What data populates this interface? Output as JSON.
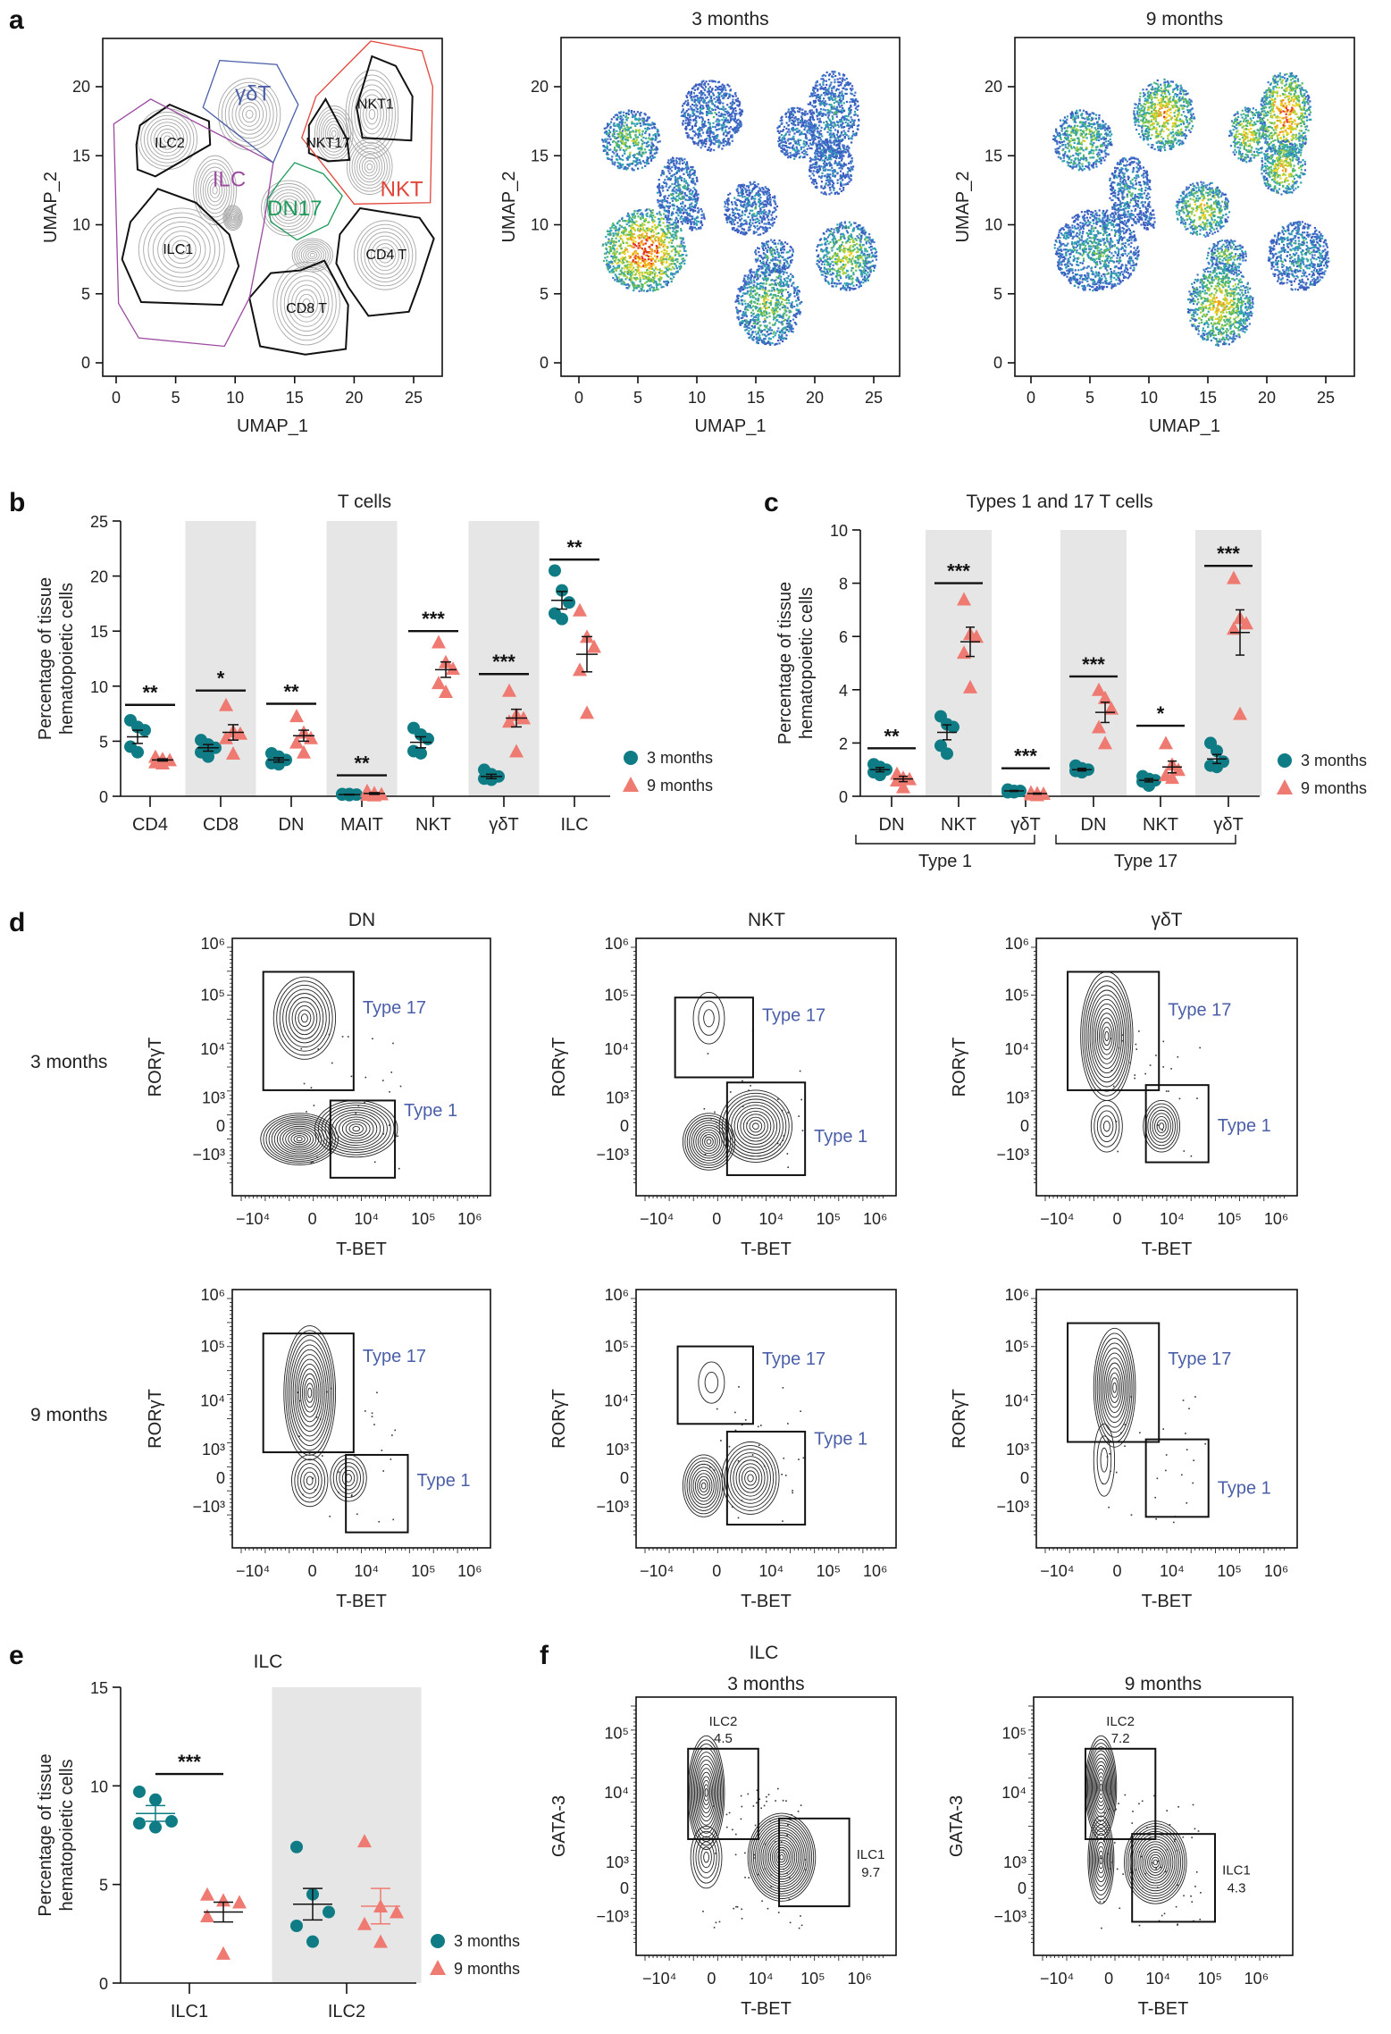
{
  "figure": {
    "panel_labels": [
      "a",
      "b",
      "c",
      "d",
      "e",
      "f"
    ],
    "colors": {
      "three_months": "#0f7c85",
      "nine_months": "#ef7a72",
      "shade": "#e6e6e6",
      "gate_label": "#4a5fa8",
      "ilc_gate": "#9b4aa0",
      "gd_gate": "#4a5fa8",
      "nkt_gate": "#e2453a",
      "dn17_gate": "#1e9a5a"
    },
    "legend": {
      "three_months": "3 months",
      "nine_months": "9 months"
    }
  },
  "chart_data": [
    {
      "id": "a-overview",
      "type": "scatter",
      "title": "",
      "xlabel": "UMAP_1",
      "ylabel": "UMAP_2",
      "xlim": [
        -1,
        27.5
      ],
      "ylim": [
        -1,
        23.5
      ],
      "xticks": [
        "0",
        "5",
        "10",
        "15",
        "20",
        "25"
      ],
      "yticks": [
        "0",
        "5",
        "10",
        "15",
        "20"
      ],
      "cluster_labels": [
        {
          "name": "ILC2",
          "x": 4.5,
          "y": 16
        },
        {
          "name": "ILC1",
          "x": 5.2,
          "y": 8.3
        },
        {
          "name": "CD8 T",
          "x": 16,
          "y": 4
        },
        {
          "name": "CD4 T",
          "x": 22.7,
          "y": 7.9
        },
        {
          "name": "NKT1",
          "x": 21.8,
          "y": 18.8
        },
        {
          "name": "NKT17",
          "x": 17.8,
          "y": 16
        }
      ],
      "gate_labels": [
        {
          "name": "γδT",
          "x": 11.5,
          "y": 19.5,
          "color_key": "gd_gate"
        },
        {
          "name": "ILC",
          "x": 9.5,
          "y": 13.3,
          "color_key": "ilc_gate"
        },
        {
          "name": "DN17",
          "x": 15,
          "y": 11.2,
          "color_key": "dn17_gate"
        },
        {
          "name": "NKT",
          "x": 24,
          "y": 12.6,
          "color_key": "nkt_gate"
        }
      ]
    },
    {
      "id": "a-3m",
      "type": "scatter",
      "title": "3 months",
      "xlabel": "UMAP_1",
      "ylabel": "UMAP_2",
      "xlim": [
        -1,
        27.5
      ],
      "ylim": [
        -1,
        23.5
      ],
      "xticks": [
        "0",
        "5",
        "10",
        "15",
        "20",
        "25"
      ],
      "yticks": [
        "0",
        "5",
        "10",
        "15",
        "20"
      ],
      "density_peaks": [
        {
          "cluster": "ILC1",
          "x": 5,
          "y": 8,
          "level": 1.0
        },
        {
          "cluster": "ILC2",
          "x": 4,
          "y": 16,
          "level": 0.55
        },
        {
          "cluster": "γδT",
          "x": 11,
          "y": 18,
          "level": 0.25
        },
        {
          "cluster": "NKT",
          "x": 21,
          "y": 17,
          "level": 0.3
        },
        {
          "cluster": "DN17",
          "x": 15,
          "y": 11,
          "level": 0.25
        },
        {
          "cluster": "CD8 T",
          "x": 16,
          "y": 5,
          "level": 0.55
        },
        {
          "cluster": "CD4 T",
          "x": 22.5,
          "y": 8,
          "level": 0.65
        }
      ]
    },
    {
      "id": "a-9m",
      "type": "scatter",
      "title": "9 months",
      "xlabel": "UMAP_1",
      "ylabel": "UMAP_2",
      "xlim": [
        -1,
        27.5
      ],
      "ylim": [
        -1,
        23.5
      ],
      "xticks": [
        "0",
        "5",
        "10",
        "15",
        "20",
        "25"
      ],
      "yticks": [
        "0",
        "5",
        "10",
        "15",
        "20"
      ],
      "density_peaks": [
        {
          "cluster": "ILC1",
          "x": 5,
          "y": 8,
          "level": 0.4
        },
        {
          "cluster": "ILC2",
          "x": 4,
          "y": 16,
          "level": 0.55
        },
        {
          "cluster": "γδT",
          "x": 11,
          "y": 18,
          "level": 0.8
        },
        {
          "cluster": "NKT",
          "x": 21,
          "y": 17,
          "level": 0.95
        },
        {
          "cluster": "DN17",
          "x": 14.5,
          "y": 11,
          "level": 0.7
        },
        {
          "cluster": "CD8 T",
          "x": 16,
          "y": 3.5,
          "level": 0.75
        },
        {
          "cluster": "CD4 T",
          "x": 22.5,
          "y": 8,
          "level": 0.35
        }
      ]
    },
    {
      "id": "b",
      "type": "scatter",
      "title": "T cells",
      "ylabel": "Percentage of tissue\nhematopoietic cells",
      "ylabel_lines": [
        "Percentage of tissue",
        "hematopoietic cells"
      ],
      "ylim": [
        0,
        25
      ],
      "yticks": [
        "0",
        "5",
        "10",
        "15",
        "20",
        "25"
      ],
      "categories": [
        "CD4",
        "CD8",
        "DN",
        "MAIT",
        "NKT",
        "γδT",
        "ILC"
      ],
      "shaded": [
        false,
        true,
        false,
        true,
        false,
        true,
        false
      ],
      "series": [
        {
          "name": "3 months",
          "marker": "circle",
          "values": [
            [
              6.9,
              6.3,
              6.0,
              4.5,
              4.0
            ],
            [
              5.1,
              4.7,
              4.4,
              4.0,
              3.6
            ],
            [
              3.9,
              3.6,
              3.3,
              3.0,
              2.9
            ],
            [
              0.2,
              0.2,
              0.15,
              0.15,
              0.1
            ],
            [
              6.2,
              5.6,
              5.2,
              4.1,
              3.9
            ],
            [
              2.4,
              2.0,
              1.8,
              1.6,
              1.5
            ],
            [
              20.5,
              18.7,
              17.6,
              16.6,
              16.1
            ]
          ],
          "mean": [
            5.4,
            4.4,
            3.3,
            0.15,
            4.9,
            1.8,
            17.8
          ],
          "sem": [
            0.6,
            0.3,
            0.2,
            0.03,
            0.5,
            0.2,
            0.8
          ]
        },
        {
          "name": "9 months",
          "marker": "triangle",
          "values": [
            [
              3.6,
              3.4,
              3.3,
              3.1,
              3.0
            ],
            [
              8.3,
              5.9,
              5.7,
              5.3,
              3.9
            ],
            [
              7.3,
              5.8,
              5.3,
              4.9,
              4.0
            ],
            [
              0.5,
              0.3,
              0.2,
              0.15,
              0.1
            ],
            [
              14.0,
              12.2,
              11.6,
              10.3,
              9.5
            ],
            [
              9.6,
              7.4,
              7.1,
              6.8,
              4.1
            ],
            [
              16.9,
              14.5,
              13.6,
              11.5,
              7.6
            ]
          ],
          "mean": [
            3.3,
            5.8,
            5.5,
            0.25,
            11.5,
            7.1,
            12.9
          ],
          "sem": [
            0.1,
            0.7,
            0.5,
            0.08,
            0.7,
            0.8,
            1.6
          ]
        }
      ],
      "significance": [
        {
          "category": "CD4",
          "label": "**",
          "y": 8.3
        },
        {
          "category": "CD8",
          "label": "*",
          "y": 9.6
        },
        {
          "category": "DN",
          "label": "**",
          "y": 8.4
        },
        {
          "category": "MAIT",
          "label": "**",
          "y": 1.9
        },
        {
          "category": "NKT",
          "label": "***",
          "y": 15.0
        },
        {
          "category": "γδT",
          "label": "***",
          "y": 11.1
        },
        {
          "category": "ILC",
          "label": "**",
          "y": 21.5
        }
      ],
      "legend_position": "bottom-right"
    },
    {
      "id": "c",
      "type": "scatter",
      "title": "Types 1 and 17 T cells",
      "ylabel_lines": [
        "Percentage of tissue",
        "hematopoietic cells"
      ],
      "ylim": [
        0,
        10
      ],
      "yticks": [
        "0",
        "2",
        "4",
        "6",
        "8",
        "10"
      ],
      "categories": [
        "DN",
        "NKT",
        "γδT",
        "DN",
        "NKT",
        "γδT"
      ],
      "groups": [
        {
          "label": "Type 1",
          "span": [
            0,
            2
          ]
        },
        {
          "label": "Type 17",
          "span": [
            3,
            5
          ]
        }
      ],
      "shaded": [
        false,
        true,
        false,
        true,
        false,
        true
      ],
      "series": [
        {
          "name": "3 months",
          "marker": "circle",
          "values": [
            [
              1.2,
              1.1,
              1.0,
              0.9,
              0.8
            ],
            [
              3.0,
              2.7,
              2.6,
              1.9,
              1.6
            ],
            [
              0.25,
              0.2,
              0.2,
              0.15,
              0.15
            ],
            [
              1.15,
              1.05,
              1.0,
              0.95,
              0.9
            ],
            [
              0.75,
              0.65,
              0.6,
              0.55,
              0.4
            ],
            [
              2.0,
              1.7,
              1.3,
              1.15,
              1.1
            ]
          ],
          "mean": [
            1.0,
            2.4,
            0.2,
            1.0,
            0.6,
            1.4
          ],
          "sem": [
            0.08,
            0.28,
            0.02,
            0.05,
            0.06,
            0.17
          ]
        },
        {
          "name": "9 months",
          "marker": "triangle",
          "values": [
            [
              0.85,
              0.7,
              0.65,
              0.6,
              0.35
            ],
            [
              7.4,
              6.1,
              6.0,
              5.4,
              4.1
            ],
            [
              0.15,
              0.12,
              0.1,
              0.08,
              0.05
            ],
            [
              4.0,
              3.7,
              3.3,
              2.6,
              2.0
            ],
            [
              2.0,
              1.2,
              1.0,
              0.8,
              0.7
            ],
            [
              8.2,
              6.7,
              6.5,
              6.3,
              3.1
            ]
          ],
          "mean": [
            0.65,
            5.8,
            0.1,
            3.15,
            1.1,
            6.15
          ],
          "sem": [
            0.1,
            0.55,
            0.02,
            0.38,
            0.22,
            0.85
          ]
        }
      ],
      "significance": [
        {
          "category_index": 0,
          "label": "**",
          "y": 1.8
        },
        {
          "category_index": 1,
          "label": "***",
          "y": 8.0
        },
        {
          "category_index": 2,
          "label": "***",
          "y": 1.05
        },
        {
          "category_index": 3,
          "label": "***",
          "y": 4.5
        },
        {
          "category_index": 4,
          "label": "*",
          "y": 2.65
        },
        {
          "category_index": 5,
          "label": "***",
          "y": 8.65
        }
      ],
      "legend_position": "bottom-right"
    },
    {
      "id": "d",
      "type": "scatter",
      "title": "",
      "xlabel": "T-BET",
      "ylabel": "RORγT",
      "columns": [
        "DN",
        "NKT",
        "γδT"
      ],
      "rows": [
        "3 months",
        "9 months"
      ],
      "xticks": [
        "−10⁴",
        "0",
        "10⁴",
        "10⁵",
        "10⁶"
      ],
      "yticks": [
        "−10³",
        "0",
        "10³",
        "10⁴",
        "10⁵",
        "10⁶"
      ],
      "gates": [
        "Type 17",
        "Type 1"
      ]
    },
    {
      "id": "e",
      "type": "scatter",
      "title": "ILC",
      "ylabel_lines": [
        "Percentage of tissue",
        "hematopoietic cells"
      ],
      "ylim": [
        0,
        15
      ],
      "yticks": [
        "0",
        "5",
        "10",
        "15"
      ],
      "categories": [
        "ILC1",
        "ILC2"
      ],
      "shaded": [
        false,
        true
      ],
      "series": [
        {
          "name": "3 months",
          "marker": "circle",
          "values": [
            [
              9.7,
              9.3,
              8.2,
              8.1,
              7.9
            ],
            [
              6.9,
              4.5,
              3.6,
              2.9,
              2.1
            ]
          ],
          "mean": [
            8.6,
            4.0
          ],
          "sem": [
            0.4,
            0.8
          ]
        },
        {
          "name": "9 months",
          "marker": "triangle",
          "values": [
            [
              4.5,
              4.2,
              4.1,
              3.4,
              1.5
            ],
            [
              7.2,
              3.9,
              3.6,
              3.0,
              2.1
            ]
          ],
          "mean": [
            3.6,
            3.9
          ],
          "sem": [
            0.5,
            0.9
          ]
        }
      ],
      "significance": [
        {
          "category": "ILC1",
          "label": "***",
          "y": 10.6
        }
      ],
      "legend_position": "bottom-right"
    },
    {
      "id": "f",
      "type": "scatter",
      "title": "ILC",
      "xlabel": "T-BET",
      "ylabel": "GATA-3",
      "panels": [
        {
          "title": "3 months",
          "gates": [
            {
              "name": "ILC2",
              "value": "4.5"
            },
            {
              "name": "ILC1",
              "value": "9.7"
            }
          ]
        },
        {
          "title": "9 months",
          "gates": [
            {
              "name": "ILC2",
              "value": "7.2"
            },
            {
              "name": "ILC1",
              "value": "4.3"
            }
          ]
        }
      ],
      "xticks": [
        "−10⁴",
        "0",
        "10⁴",
        "10⁵",
        "10⁶"
      ],
      "yticks": [
        "−10³",
        "0",
        "10³",
        "10⁴",
        "10⁵"
      ]
    }
  ]
}
